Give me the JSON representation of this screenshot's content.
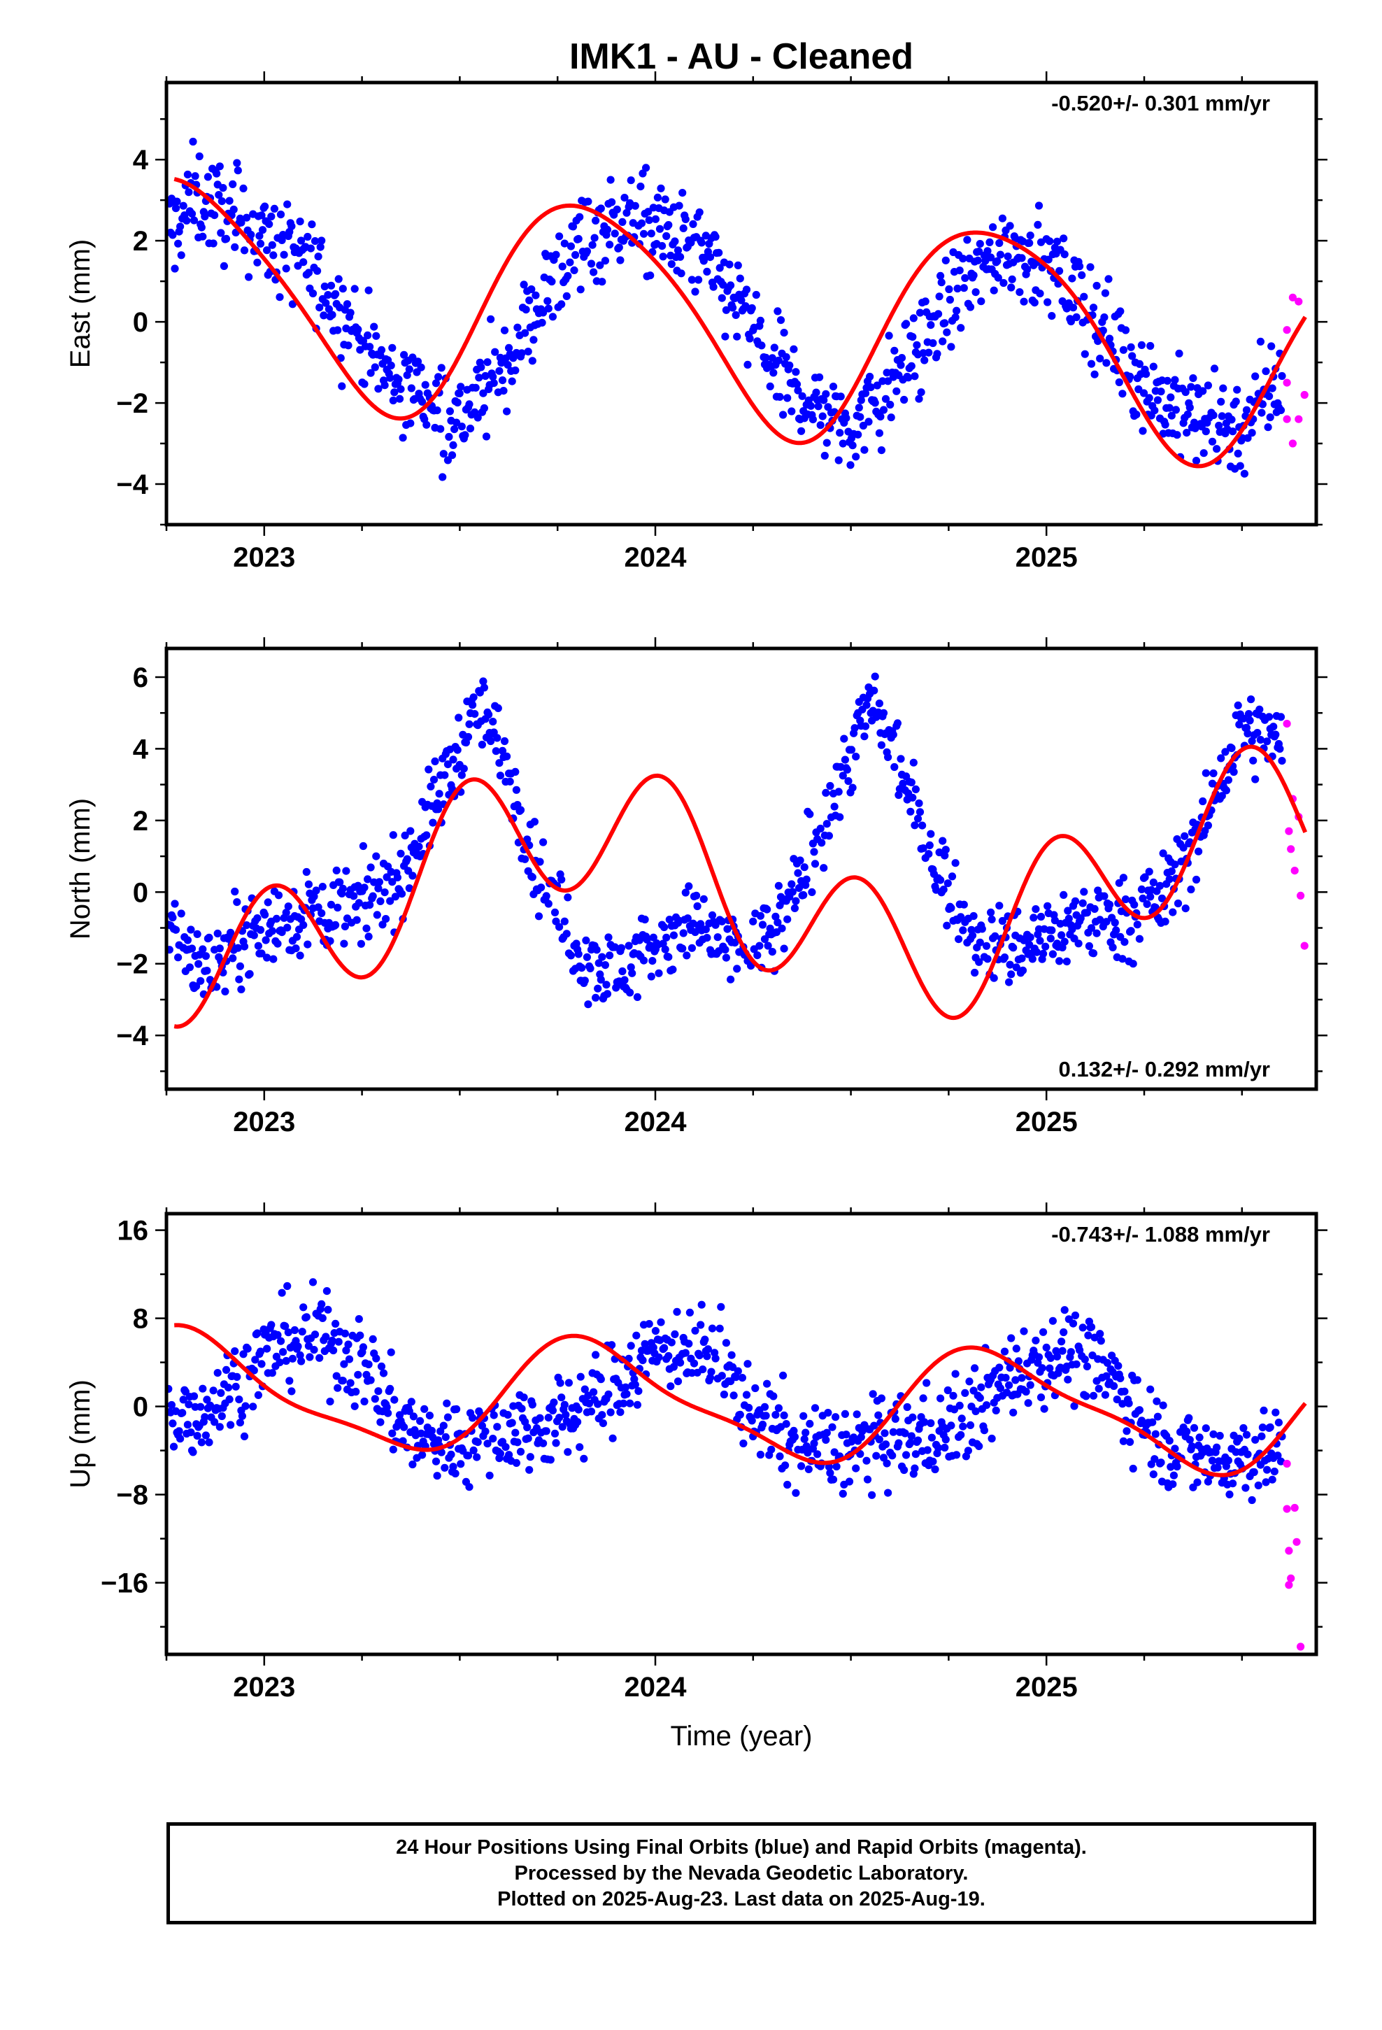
{
  "chart_data": {
    "title": "IMK1  - AU - Cleaned",
    "xlabel": "Time (year)",
    "type": "scatter",
    "x_ticks": [
      "2023",
      "2024",
      "2025"
    ],
    "xlim": [
      2022.75,
      2025.69
    ],
    "colors": {
      "final": "#0000ff",
      "rapid": "#ff00ff",
      "model": "#ff0000"
    },
    "panels": [
      {
        "name": "East",
        "ylabel": "East (mm)",
        "ylim": [
          -5.0,
          5.9
        ],
        "yticks": [
          4,
          2,
          0,
          -2,
          -4
        ],
        "ytick_labels": [
          "4",
          "2",
          "0",
          "−2",
          "−4"
        ],
        "rate": "-0.520+/- 0.301 mm/yr",
        "rate_pos": "top-right",
        "model": {
          "mean": 0.1,
          "trend": -0.52,
          "harmonics": [
            [
              2.7,
              0.12,
              0.97
            ],
            [
              0.35,
              0.65,
              2.0
            ]
          ]
        },
        "noise": 0.85,
        "final": [
          [
            2022.77,
            2.3
          ],
          [
            2022.82,
            3.1
          ],
          [
            2022.9,
            2.7
          ],
          [
            2023.0,
            2.1
          ],
          [
            2023.1,
            1.5
          ],
          [
            2023.2,
            0.3
          ],
          [
            2023.3,
            -1.2
          ],
          [
            2023.4,
            -1.7
          ],
          [
            2023.5,
            -2.4
          ],
          [
            2023.6,
            -1.3
          ],
          [
            2023.7,
            0.4
          ],
          [
            2023.8,
            1.9
          ],
          [
            2023.9,
            2.5
          ],
          [
            2024.0,
            2.3
          ],
          [
            2024.1,
            1.8
          ],
          [
            2024.2,
            0.6
          ],
          [
            2024.3,
            -1.1
          ],
          [
            2024.4,
            -2.0
          ],
          [
            2024.5,
            -2.6
          ],
          [
            2024.6,
            -1.6
          ],
          [
            2024.7,
            -0.2
          ],
          [
            2024.8,
            1.0
          ],
          [
            2024.9,
            1.9
          ],
          [
            2025.0,
            1.4
          ],
          [
            2025.1,
            0.4
          ],
          [
            2025.2,
            -0.8
          ],
          [
            2025.3,
            -2.0
          ],
          [
            2025.4,
            -2.4
          ],
          [
            2025.5,
            -2.6
          ],
          [
            2025.6,
            -1.4
          ]
        ],
        "rapid": [
          [
            2025.615,
            -1.5
          ],
          [
            2025.615,
            -2.4
          ],
          [
            2025.615,
            -0.2
          ],
          [
            2025.63,
            -3.0
          ],
          [
            2025.63,
            0.6
          ],
          [
            2025.645,
            -2.4
          ],
          [
            2025.645,
            0.5
          ],
          [
            2025.66,
            -1.8
          ]
        ]
      },
      {
        "name": "North",
        "ylabel": "North (mm)",
        "ylim": [
          -5.5,
          6.8
        ],
        "yticks": [
          6,
          4,
          2,
          0,
          -2,
          -4
        ],
        "ytick_labels": [
          "6",
          "4",
          "2",
          "0",
          "−2",
          "−4"
        ],
        "rate": "0.132+/- 0.292 mm/yr",
        "rate_pos": "bottom-right",
        "model": {
          "mean": 0.1,
          "trend": 0.132,
          "harmonics": [
            [
              1.9,
              0.56,
              0.56
            ],
            [
              1.9,
              0.52,
              2.0
            ]
          ]
        },
        "noise": 0.8,
        "final": [
          [
            2022.77,
            -1.0
          ],
          [
            2022.85,
            -2.2
          ],
          [
            2022.95,
            -1.2
          ],
          [
            2023.05,
            -0.8
          ],
          [
            2023.15,
            -0.5
          ],
          [
            2023.25,
            -0.4
          ],
          [
            2023.35,
            0.5
          ],
          [
            2023.45,
            2.8
          ],
          [
            2023.55,
            5.2
          ],
          [
            2023.62,
            3.6
          ],
          [
            2023.7,
            0.5
          ],
          [
            2023.8,
            -1.6
          ],
          [
            2023.9,
            -2.3
          ],
          [
            2024.0,
            -1.4
          ],
          [
            2024.1,
            -0.9
          ],
          [
            2024.2,
            -1.7
          ],
          [
            2024.3,
            -1.3
          ],
          [
            2024.4,
            1.0
          ],
          [
            2024.5,
            3.9
          ],
          [
            2024.55,
            5.3
          ],
          [
            2024.62,
            3.6
          ],
          [
            2024.7,
            1.2
          ],
          [
            2024.8,
            -1.0
          ],
          [
            2024.9,
            -1.6
          ],
          [
            2025.0,
            -1.2
          ],
          [
            2025.1,
            -0.8
          ],
          [
            2025.2,
            -0.7
          ],
          [
            2025.3,
            -0.1
          ],
          [
            2025.4,
            1.8
          ],
          [
            2025.5,
            4.6
          ],
          [
            2025.58,
            4.2
          ]
        ],
        "rapid": [
          [
            2025.615,
            4.7
          ],
          [
            2025.62,
            1.7
          ],
          [
            2025.625,
            1.2
          ],
          [
            2025.63,
            2.6
          ],
          [
            2025.635,
            0.6
          ],
          [
            2025.645,
            2.1
          ],
          [
            2025.65,
            -0.1
          ],
          [
            2025.66,
            -1.5
          ]
        ]
      },
      {
        "name": "Up",
        "ylabel": "Up (mm)",
        "ylim": [
          -22.5,
          17.5
        ],
        "yticks": [
          16,
          8,
          0,
          -8,
          -16
        ],
        "ytick_labels": [
          "16",
          "8",
          "0",
          "−8",
          "−16"
        ],
        "rate": "-0.743+/- 1.088 mm/yr",
        "rate_pos": "top-right",
        "model": {
          "mean": 0.3,
          "trend": -0.743,
          "harmonics": [
            [
              4.9,
              0.13,
              0.97
            ],
            [
              1.3,
              0.25,
              2.0
            ]
          ]
        },
        "noise": 2.9,
        "final": [
          [
            2022.77,
            -1.0
          ],
          [
            2022.85,
            -0.2
          ],
          [
            2022.95,
            2.8
          ],
          [
            2023.05,
            5.9
          ],
          [
            2023.15,
            6.4
          ],
          [
            2023.25,
            3.9
          ],
          [
            2023.35,
            -1.6
          ],
          [
            2023.45,
            -3.4
          ],
          [
            2023.55,
            -2.6
          ],
          [
            2023.65,
            -2.0
          ],
          [
            2023.75,
            -1.4
          ],
          [
            2023.85,
            0.5
          ],
          [
            2023.95,
            3.9
          ],
          [
            2024.05,
            6.0
          ],
          [
            2024.15,
            4.2
          ],
          [
            2024.25,
            -0.4
          ],
          [
            2024.35,
            -3.3
          ],
          [
            2024.45,
            -4.1
          ],
          [
            2024.55,
            -3.4
          ],
          [
            2024.65,
            -2.8
          ],
          [
            2024.75,
            -2.1
          ],
          [
            2024.85,
            0.9
          ],
          [
            2024.95,
            3.8
          ],
          [
            2025.05,
            5.1
          ],
          [
            2025.15,
            3.2
          ],
          [
            2025.25,
            -1.5
          ],
          [
            2025.35,
            -4.2
          ],
          [
            2025.45,
            -4.8
          ],
          [
            2025.55,
            -4.2
          ],
          [
            2025.6,
            -4.0
          ]
        ],
        "rapid": [
          [
            2025.615,
            -5.2
          ],
          [
            2025.615,
            -9.3
          ],
          [
            2025.62,
            -16.2
          ],
          [
            2025.62,
            -13.1
          ],
          [
            2025.625,
            -15.6
          ],
          [
            2025.635,
            -9.2
          ],
          [
            2025.64,
            -12.3
          ],
          [
            2025.65,
            -21.8
          ]
        ]
      }
    ]
  },
  "footer": {
    "line1": "24 Hour Positions Using Final Orbits (blue) and Rapid Orbits (magenta).",
    "line2": "Processed by the Nevada Geodetic Laboratory.",
    "line3": "Plotted on 2025-Aug-23. Last data on 2025-Aug-19."
  }
}
